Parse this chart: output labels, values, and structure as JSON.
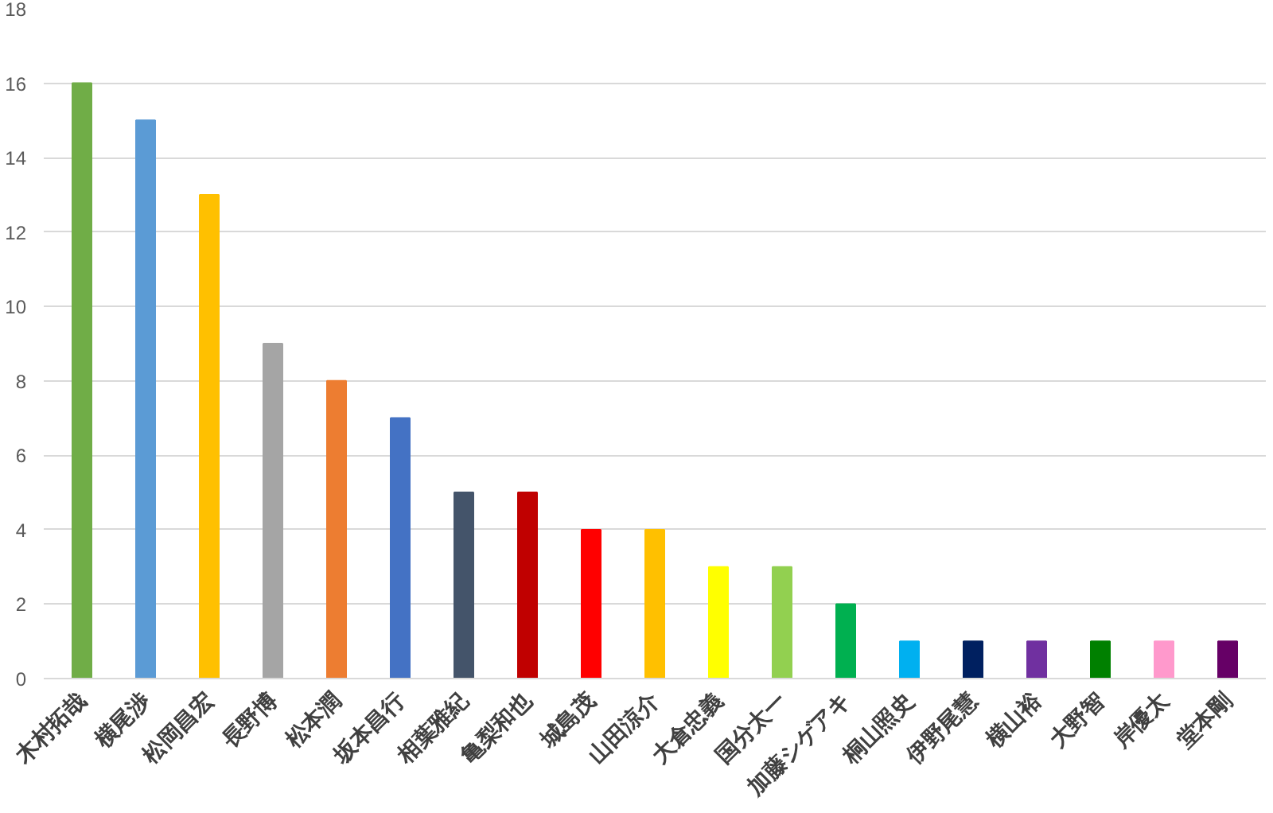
{
  "chart_data": {
    "type": "bar",
    "categories": [
      "木村拓哉",
      "横尾渉",
      "松岡昌宏",
      "長野博",
      "松本潤",
      "坂本昌行",
      "相葉雅紀",
      "亀梨和也",
      "城島茂",
      "山田涼介",
      "大倉忠義",
      "国分太一",
      "加藤シゲアキ",
      "桐山照史",
      "伊野尾慧",
      "横山裕",
      "大野智",
      "岸優太",
      "堂本剛"
    ],
    "values": [
      16,
      15,
      13,
      9,
      8,
      7,
      5,
      5,
      4,
      4,
      3,
      3,
      2,
      1,
      1,
      1,
      1,
      1,
      1
    ],
    "colors": [
      "#70ad47",
      "#5b9bd5",
      "#ffc000",
      "#a5a5a5",
      "#ed7d31",
      "#4472c4",
      "#44546a",
      "#c00000",
      "#ff0000",
      "#ffc000",
      "#ffff00",
      "#92d050",
      "#00b050",
      "#00b0f0",
      "#002060",
      "#7030a0",
      "#008000",
      "#ff99cc",
      "#660066"
    ],
    "ylim": [
      0,
      18
    ],
    "yticks": [
      0,
      2,
      4,
      6,
      8,
      10,
      12,
      14,
      16,
      18
    ],
    "grid": "y"
  }
}
